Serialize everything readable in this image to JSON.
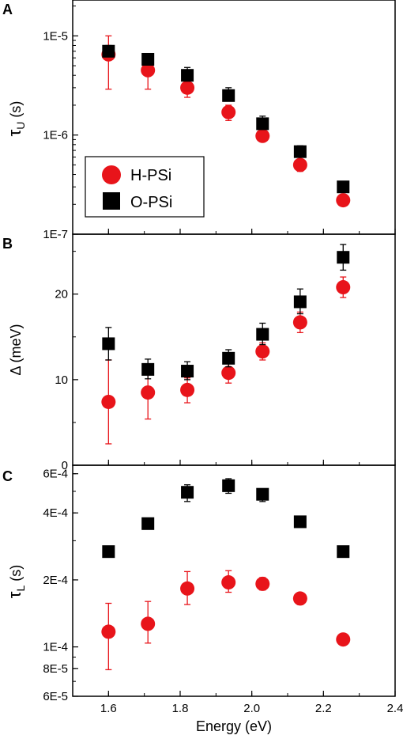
{
  "x_axis": {
    "label": "Energy (eV)",
    "range": [
      1.5,
      2.4
    ],
    "ticks": [
      1.6,
      1.8,
      2.0,
      2.2,
      2.4
    ],
    "tick_labels": [
      "1.6",
      "1.8",
      "2.0",
      "2.2",
      "2.4"
    ]
  },
  "chart_data": [
    {
      "panel": "A",
      "type": "scatter",
      "xlabel": "Energy (eV)",
      "ylabel_main": "τ",
      "ylabel_sub": "U",
      "ylabel_unit": " (s)",
      "yscale": "log",
      "ylim": [
        1e-07,
        2.3e-05
      ],
      "y_ticks": [
        1e-07,
        1e-06,
        1e-05
      ],
      "y_tick_labels": [
        "1E-7",
        "1E-6",
        "1E-5"
      ],
      "legend": {
        "placement": "center-left",
        "entries": [
          "H-PSi",
          "O-PSi"
        ]
      },
      "series": [
        {
          "name": "H-PSi",
          "color": "#e8141a",
          "marker": "circle",
          "x": [
            1.6,
            1.71,
            1.82,
            1.935,
            2.03,
            2.135,
            2.255
          ],
          "y": [
            6.5e-06,
            4.5e-06,
            3e-06,
            1.7e-06,
            9.8e-07,
            5e-07,
            2.2e-07
          ],
          "err_low": [
            2.9e-06,
            2.9e-06,
            2.4e-06,
            1.4e-06,
            null,
            4.3e-07,
            null
          ],
          "err_high": [
            1e-05,
            5.6e-06,
            3.5e-06,
            2e-06,
            null,
            5.6e-07,
            null
          ]
        },
        {
          "name": "O-PSi",
          "color": "#000000",
          "marker": "square",
          "x": [
            1.6,
            1.71,
            1.82,
            1.935,
            2.03,
            2.135,
            2.255
          ],
          "y": [
            7e-06,
            5.8e-06,
            4e-06,
            2.5e-06,
            1.3e-06,
            6.8e-07,
            3e-07
          ],
          "err_low": [
            6.2e-06,
            5.3e-06,
            3.5e-06,
            2.2e-06,
            1.15e-06,
            6e-07,
            2.8e-07
          ],
          "err_high": [
            8e-06,
            6.4e-06,
            4.8e-06,
            3e-06,
            1.55e-06,
            7.8e-07,
            3.2e-07
          ]
        }
      ]
    },
    {
      "panel": "B",
      "type": "scatter",
      "xlabel": "Energy (eV)",
      "ylabel_main": "Δ",
      "ylabel_sub": "",
      "ylabel_unit": " (meV)",
      "yscale": "linear",
      "ylim": [
        0,
        27
      ],
      "y_ticks": [
        0,
        10,
        20
      ],
      "y_tick_labels": [
        "0",
        "10",
        "20"
      ],
      "series": [
        {
          "name": "H-PSi",
          "color": "#e8141a",
          "marker": "circle",
          "x": [
            1.6,
            1.71,
            1.82,
            1.935,
            2.03,
            2.135,
            2.255
          ],
          "y": [
            7.4,
            8.5,
            8.8,
            10.8,
            13.3,
            16.7,
            20.8
          ],
          "err_low": [
            2.5,
            5.4,
            7.3,
            9.6,
            12.3,
            15.5,
            19.6
          ],
          "err_high": [
            12.3,
            10.9,
            10.2,
            12.0,
            14.3,
            17.9,
            22.0
          ]
        },
        {
          "name": "O-PSi",
          "color": "#000000",
          "marker": "square",
          "x": [
            1.6,
            1.71,
            1.82,
            1.935,
            2.03,
            2.135,
            2.255
          ],
          "y": [
            14.2,
            11.2,
            11.0,
            12.5,
            15.3,
            19.1,
            24.3
          ],
          "err_low": [
            12.3,
            10.1,
            10.0,
            11.5,
            14.1,
            17.7,
            22.8
          ],
          "err_high": [
            16.1,
            12.4,
            12.1,
            13.5,
            16.6,
            20.6,
            25.8
          ]
        }
      ]
    },
    {
      "panel": "C",
      "type": "scatter",
      "xlabel": "Energy (eV)",
      "ylabel_main": "τ",
      "ylabel_sub": "L",
      "ylabel_unit": " (s)",
      "yscale": "log",
      "ylim": [
        6e-05,
        0.000655
      ],
      "y_ticks": [
        6e-05,
        8e-05,
        0.0001,
        0.0002,
        0.0004,
        0.0006
      ],
      "y_tick_labels": [
        "6E-5",
        "8E-5",
        "1E-4",
        "2E-4",
        "4E-4",
        "6E-4"
      ],
      "series": [
        {
          "name": "H-PSi",
          "color": "#e8141a",
          "marker": "circle",
          "x": [
            1.6,
            1.71,
            1.82,
            1.935,
            2.03,
            2.135,
            2.255
          ],
          "y": [
            0.000117,
            0.000127,
            0.000183,
            0.000195,
            0.000192,
            0.000165,
            0.000108
          ],
          "err_low": [
            7.9e-05,
            0.000104,
            0.000155,
            0.000176,
            0.00018,
            0.000155,
            null
          ],
          "err_high": [
            0.000157,
            0.00016,
            0.000218,
            0.00022,
            0.000205,
            0.000175,
            null
          ]
        },
        {
          "name": "O-PSi",
          "color": "#000000",
          "marker": "square",
          "x": [
            1.6,
            1.71,
            1.82,
            1.935,
            2.03,
            2.135,
            2.255
          ],
          "y": [
            0.000268,
            0.000358,
            0.000495,
            0.00053,
            0.000485,
            0.000365,
            0.000268
          ],
          "err_low": [
            0.00026,
            0.000345,
            0.00045,
            0.00049,
            0.00045,
            0.00035,
            0.00026
          ],
          "err_high": [
            0.000276,
            0.00037,
            0.000535,
            0.00057,
            0.00051,
            0.00038,
            0.000276
          ]
        }
      ]
    }
  ]
}
